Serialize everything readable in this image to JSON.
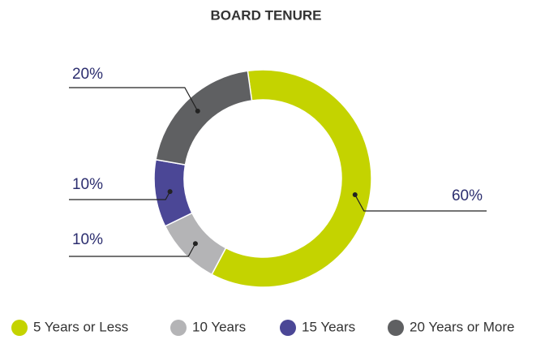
{
  "chart_data": {
    "type": "pie",
    "title": "BOARD TENURE",
    "categories": [
      "5 Years or Less",
      "10 Years",
      "15 Years",
      "20 Years or More"
    ],
    "values": [
      60,
      10,
      10,
      20
    ],
    "value_labels": [
      "60%",
      "10%",
      "10%",
      "20%"
    ],
    "colors": [
      "#c4d300",
      "#b4b4b6",
      "#4b4796",
      "#5f6062"
    ],
    "donut": true,
    "legend": "bottom"
  }
}
